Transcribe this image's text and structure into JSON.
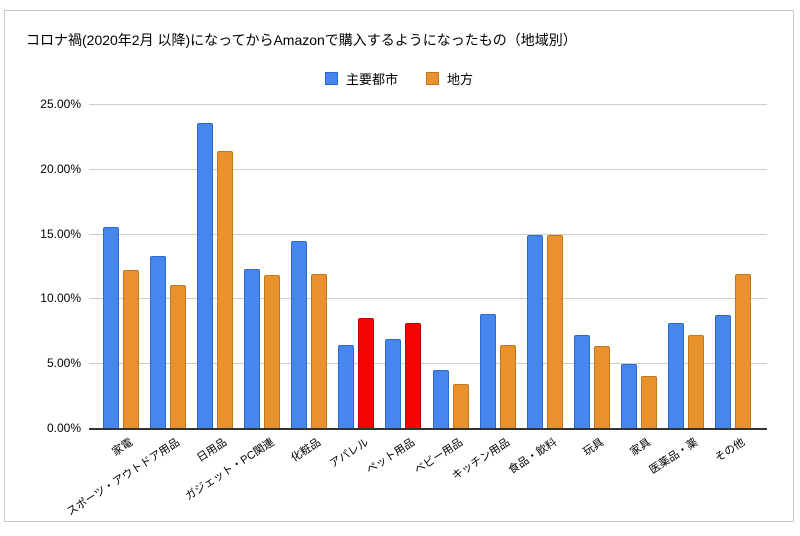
{
  "window": {
    "background": "#ffffff",
    "frame_border": "#c9c9c9"
  },
  "title": "コロナ禍(2020年2月 以降)になってからAmazonで購入するようになったもの（地域別）",
  "legend": {
    "items": [
      {
        "label": "主要都市",
        "color": "#4587ec",
        "border": "#2d68cc"
      },
      {
        "label": "地方",
        "color": "#e8912d",
        "border": "#c1761b"
      }
    ]
  },
  "chart_data": {
    "type": "bar",
    "title": "コロナ禍(2020年2月 以降)になってからAmazonで購入するようになったもの（地域別）",
    "categories": [
      "家電",
      "スポーツ・アウトドア用品",
      "日用品",
      "ガジェット・PC関連",
      "化粧品",
      "アパレル",
      "ペット用品",
      "ベビー用品",
      "キッチン用品",
      "食品・飲料",
      "玩具",
      "家具",
      "医薬品・薬",
      "その他"
    ],
    "series": [
      {
        "name": "主要都市",
        "color": "#4587ec",
        "border_color": "#2d68cc",
        "values": [
          15.5,
          13.3,
          23.5,
          12.3,
          14.4,
          6.4,
          6.9,
          4.5,
          8.8,
          14.9,
          7.2,
          4.9,
          8.1,
          8.7
        ]
      },
      {
        "name": "地方",
        "color": "#e8912d",
        "border_color": "#c1761b",
        "values": [
          12.2,
          11.0,
          21.4,
          11.8,
          11.9,
          8.5,
          8.1,
          3.4,
          6.4,
          14.9,
          6.3,
          4.0,
          7.2,
          11.9
        ],
        "highlight": {
          "indices": [
            5,
            6
          ],
          "color": "#f50400",
          "border_color": "#c00000"
        }
      }
    ],
    "yticks": [
      {
        "value": 0,
        "label": "0.00%"
      },
      {
        "value": 5,
        "label": "5.00%"
      },
      {
        "value": 10,
        "label": "10.00%"
      },
      {
        "value": 15,
        "label": "15.00%"
      },
      {
        "value": 20,
        "label": "20.00%"
      },
      {
        "value": 25,
        "label": "25.00%"
      }
    ],
    "ylim": [
      0,
      25
    ],
    "grid": true,
    "legend_position": "top"
  }
}
